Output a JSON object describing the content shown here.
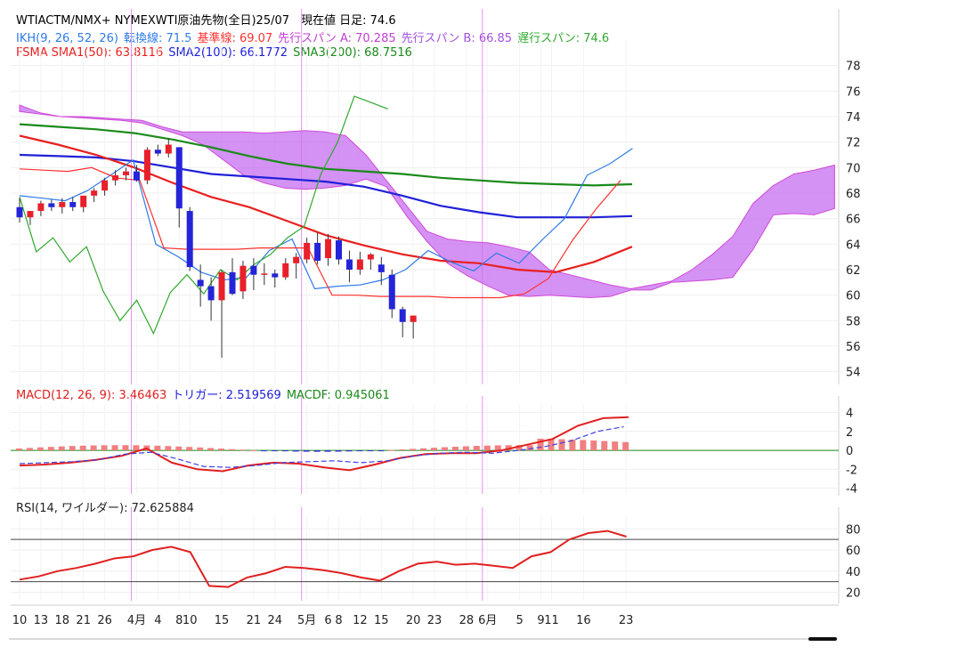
{
  "header": {
    "title": "WTIACTM/NMX+ NYMEXWTI原油先物(全日)25/07　現在値 日足: 74.6",
    "ikh_label": "IKH(9, 26, 52, 26)",
    "tenkan": "転換線: 71.5",
    "kijun": "基準線: 69.07",
    "spanA": "先行スパン A: 70.285",
    "spanB": "先行スパン B: 66.85",
    "chikou": "遅行スパン: 74.6",
    "fsma_label": "FSMA",
    "sma1": "SMA1(50): 63.8116",
    "sma2": "SMA2(100): 66.1772",
    "sma3": "SMA3(200): 68.7516"
  },
  "macd_header": {
    "macd": "MACD(12, 26, 9): 3.46463",
    "trigger": "トリガー: 2.519569",
    "macdf": "MACDF: 0.945061"
  },
  "rsi_header": {
    "rsi": "RSI(14, ワイルダー): 72.625884"
  },
  "colors": {
    "up": "#e8202a",
    "down": "#2424d8",
    "kumo": "#c66ef0",
    "tenkan": "#2e7be8",
    "kijun": "#ff3030",
    "chikou": "#2ea82e",
    "sma1": "#e82020",
    "sma2": "#2020d8",
    "sma3": "#1a8a1a",
    "month_line": "#e890f0",
    "macd": "#e02020",
    "trigger": "#4040e0"
  },
  "chart_data": [
    {
      "type": "candlestick",
      "title": "WTIACTM/NMX+ NYMEXWTI原油先物(全日)25/07",
      "y_ticks": [
        54,
        56,
        58,
        60,
        62,
        64,
        66,
        68,
        70,
        72,
        74,
        76,
        78
      ],
      "ylim": [
        53,
        80
      ],
      "x_tick_labels": [
        "10",
        "13",
        "18",
        "21",
        "26",
        "4月",
        "4",
        "8",
        "10",
        "15",
        "21",
        "24",
        "5月",
        "6",
        "8",
        "12",
        "15",
        "20",
        "23",
        "28",
        "6月",
        "5",
        "9",
        "11",
        "16",
        "23"
      ],
      "x_tick_index": [
        0,
        2,
        4,
        6,
        8,
        11,
        13,
        15,
        16,
        19,
        22,
        24,
        27,
        29,
        30,
        32,
        34,
        37,
        39,
        42,
        44,
        47,
        49,
        50,
        53,
        57
      ],
      "month_divider_index": [
        10.5,
        26.5,
        43.5
      ],
      "candles": [
        {
          "o": 66.9,
          "h": 67.6,
          "l": 65.7,
          "c": 66.1
        },
        {
          "o": 66.1,
          "h": 66.6,
          "l": 65.5,
          "c": 66.6
        },
        {
          "o": 66.6,
          "h": 67.4,
          "l": 66.2,
          "c": 67.2
        },
        {
          "o": 67.2,
          "h": 67.5,
          "l": 66.6,
          "c": 66.9
        },
        {
          "o": 66.9,
          "h": 67.6,
          "l": 66.4,
          "c": 67.3
        },
        {
          "o": 67.3,
          "h": 67.7,
          "l": 66.6,
          "c": 66.9
        },
        {
          "o": 66.9,
          "h": 67.8,
          "l": 66.5,
          "c": 67.8
        },
        {
          "o": 67.8,
          "h": 68.4,
          "l": 67.3,
          "c": 68.2
        },
        {
          "o": 68.2,
          "h": 69.2,
          "l": 67.8,
          "c": 69.0
        },
        {
          "o": 69.0,
          "h": 69.8,
          "l": 68.6,
          "c": 69.4
        },
        {
          "o": 69.4,
          "h": 70.0,
          "l": 69.0,
          "c": 69.7
        },
        {
          "o": 69.7,
          "h": 70.2,
          "l": 68.9,
          "c": 69.0
        },
        {
          "o": 69.0,
          "h": 71.6,
          "l": 68.7,
          "c": 71.4
        },
        {
          "o": 71.4,
          "h": 71.8,
          "l": 70.9,
          "c": 71.1
        },
        {
          "o": 71.1,
          "h": 72.3,
          "l": 70.8,
          "c": 71.8
        },
        {
          "o": 71.6,
          "h": 71.6,
          "l": 65.3,
          "c": 66.8
        },
        {
          "o": 66.6,
          "h": 66.9,
          "l": 61.9,
          "c": 62.2
        },
        {
          "o": 61.2,
          "h": 62.4,
          "l": 59.1,
          "c": 60.7
        },
        {
          "o": 60.7,
          "h": 61.4,
          "l": 58.0,
          "c": 59.6
        },
        {
          "o": 59.6,
          "h": 62.0,
          "l": 55.1,
          "c": 61.8
        },
        {
          "o": 61.8,
          "h": 62.9,
          "l": 60.0,
          "c": 60.1
        },
        {
          "o": 60.3,
          "h": 62.7,
          "l": 59.7,
          "c": 62.3
        },
        {
          "o": 62.3,
          "h": 62.9,
          "l": 60.4,
          "c": 61.6
        },
        {
          "o": 61.6,
          "h": 62.5,
          "l": 60.8,
          "c": 61.7
        },
        {
          "o": 61.7,
          "h": 62.0,
          "l": 60.6,
          "c": 61.4
        },
        {
          "o": 61.4,
          "h": 62.9,
          "l": 61.2,
          "c": 62.5
        },
        {
          "o": 62.5,
          "h": 63.3,
          "l": 61.3,
          "c": 63.0
        },
        {
          "o": 62.8,
          "h": 64.5,
          "l": 62.5,
          "c": 64.1
        },
        {
          "o": 64.1,
          "h": 64.9,
          "l": 62.4,
          "c": 62.7
        },
        {
          "o": 62.9,
          "h": 64.8,
          "l": 62.3,
          "c": 64.4
        },
        {
          "o": 64.3,
          "h": 64.6,
          "l": 62.4,
          "c": 62.8
        },
        {
          "o": 62.8,
          "h": 63.5,
          "l": 61.0,
          "c": 62.0
        },
        {
          "o": 62.0,
          "h": 63.4,
          "l": 61.6,
          "c": 62.8
        },
        {
          "o": 62.8,
          "h": 63.3,
          "l": 62.0,
          "c": 63.2
        },
        {
          "o": 62.4,
          "h": 63.0,
          "l": 60.8,
          "c": 61.8
        },
        {
          "o": 61.6,
          "h": 62.0,
          "l": 58.2,
          "c": 58.9
        },
        {
          "o": 58.9,
          "h": 59.1,
          "l": 56.7,
          "c": 57.9
        },
        {
          "o": 57.9,
          "h": 58.4,
          "l": 56.6,
          "c": 58.4
        }
      ],
      "y_axis_side": "right"
    },
    {
      "type": "line",
      "title": "MACD(12, 26, 9)",
      "y_ticks": [
        4,
        2,
        0,
        -2,
        -4
      ],
      "ylim": [
        -4.6,
        4.8
      ],
      "series_names": [
        "MACD",
        "トリガー",
        "MACDF"
      ]
    },
    {
      "type": "line",
      "title": "RSI(14, ワイルダー)",
      "y_ticks": [
        80,
        60,
        40,
        20
      ],
      "ylim": [
        12,
        92
      ],
      "reference_lines": [
        70,
        30
      ]
    }
  ]
}
